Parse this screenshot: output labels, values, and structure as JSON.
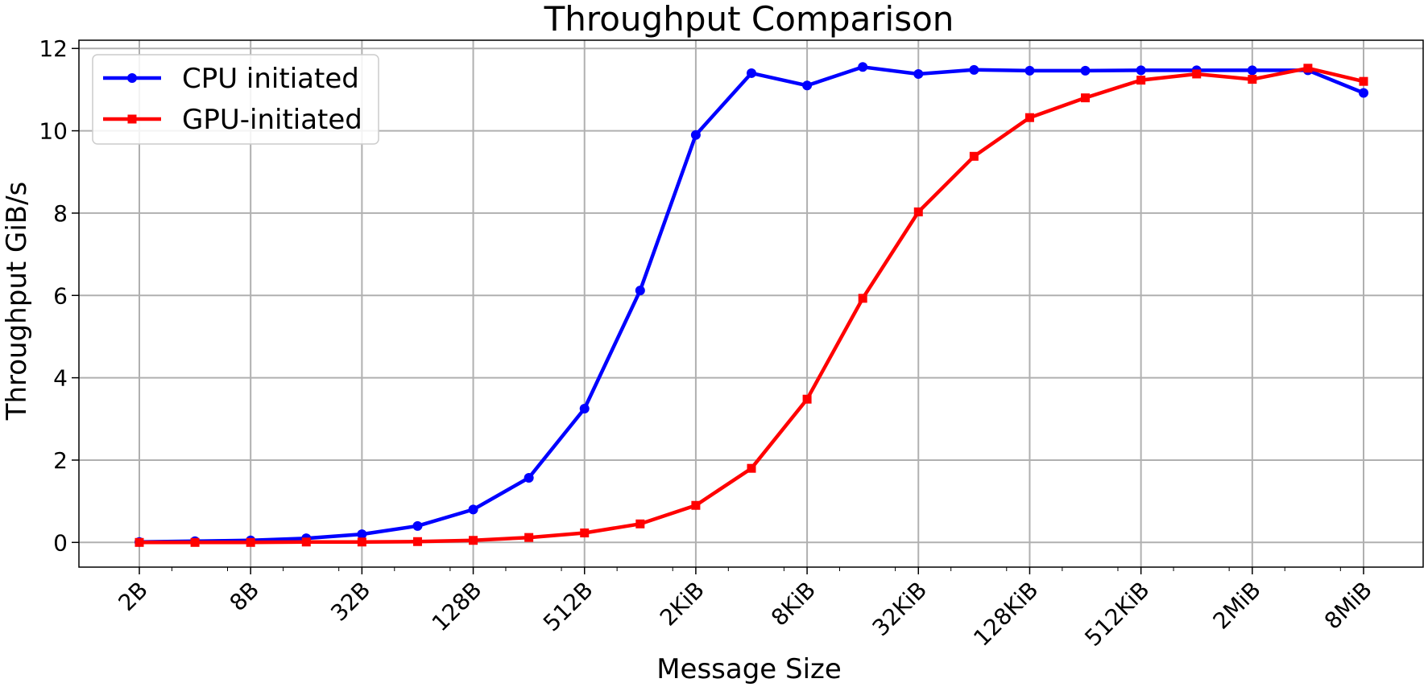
{
  "chart_data": {
    "type": "line",
    "title": "Throughput Comparison",
    "xlabel": "Message Size",
    "ylabel": "Throughput GiB/s",
    "x_scale": "log2",
    "x": [
      "2B",
      "4B",
      "8B",
      "16B",
      "32B",
      "64B",
      "128B",
      "256B",
      "512B",
      "1KiB",
      "2KiB",
      "4KiB",
      "8KiB",
      "16KiB",
      "32KiB",
      "64KiB",
      "128KiB",
      "256KiB",
      "512KiB",
      "1MiB",
      "2MiB",
      "4MiB",
      "8MiB"
    ],
    "x_tick_labels": [
      "2B",
      "8B",
      "32B",
      "128B",
      "512B",
      "2KiB",
      "8KiB",
      "32KiB",
      "128KiB",
      "512KiB",
      "2MiB",
      "8MiB"
    ],
    "yticks": [
      0,
      2,
      4,
      6,
      8,
      10,
      12
    ],
    "ylim": [
      -0.6,
      12.2
    ],
    "grid": true,
    "legend_position": "top-left",
    "series": [
      {
        "name": "CPU initiated",
        "color": "#0000ff",
        "marker": "circle",
        "values": [
          0.01,
          0.03,
          0.05,
          0.1,
          0.2,
          0.4,
          0.8,
          1.57,
          3.25,
          6.12,
          9.9,
          11.4,
          11.1,
          11.55,
          11.38,
          11.48,
          11.46,
          11.46,
          11.47,
          11.47,
          11.47,
          11.47,
          10.92
        ]
      },
      {
        "name": "GPU-initiated",
        "color": "#ff0000",
        "marker": "square",
        "values": [
          0.0,
          0.0,
          0.0,
          0.01,
          0.01,
          0.02,
          0.05,
          0.12,
          0.23,
          0.45,
          0.9,
          1.8,
          3.48,
          5.93,
          8.03,
          9.38,
          10.32,
          10.8,
          11.23,
          11.38,
          11.25,
          11.52,
          11.2
        ]
      }
    ]
  }
}
